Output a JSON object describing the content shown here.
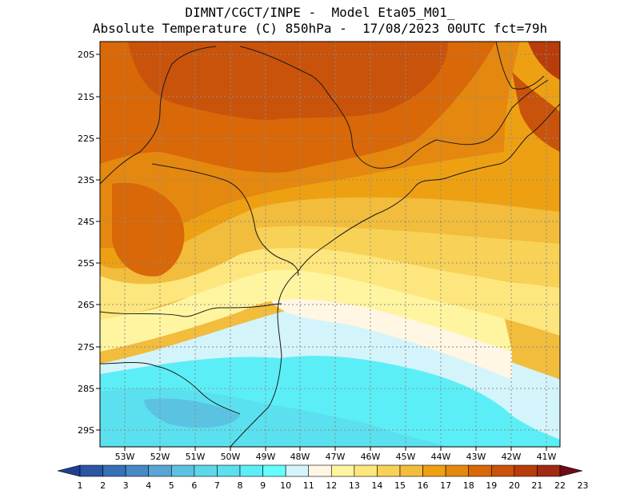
{
  "header": {
    "title_line1": "DIMNT/CGCT/INPE -  Model Eta05_M01_",
    "title_line2": "Absolute Temperature (C) 850hPa -  17/08/2023 00UTC fct=79h"
  },
  "map": {
    "lat_labels": [
      "20S",
      "21S",
      "22S",
      "23S",
      "24S",
      "25S",
      "26S",
      "27S",
      "28S",
      "29S"
    ],
    "lon_labels": [
      "53W",
      "52W",
      "51W",
      "50W",
      "49W",
      "48W",
      "47W",
      "46W",
      "45W",
      "44W",
      "43W",
      "42W",
      "41W"
    ]
  },
  "colorbar": {
    "labels": [
      "1",
      "2",
      "3",
      "4",
      "5",
      "6",
      "7",
      "8",
      "9",
      "10",
      "11",
      "12",
      "13",
      "14",
      "15",
      "16",
      "17",
      "18",
      "19",
      "20",
      "21",
      "22",
      "23"
    ],
    "colors": [
      "#1f3f91",
      "#2b56a6",
      "#3670b6",
      "#4789c5",
      "#59a5d4",
      "#5cc2e2",
      "#5fd7ea",
      "#5ae0ee",
      "#5ceef6",
      "#66fdfd",
      "#d4f4fb",
      "#fff6e4",
      "#fff5a1",
      "#fde67d",
      "#f7d257",
      "#f2bc3c",
      "#eea013",
      "#e5880f",
      "#d86808",
      "#c9530a",
      "#b93d0a",
      "#a22a12",
      "#6e0a18"
    ]
  }
}
